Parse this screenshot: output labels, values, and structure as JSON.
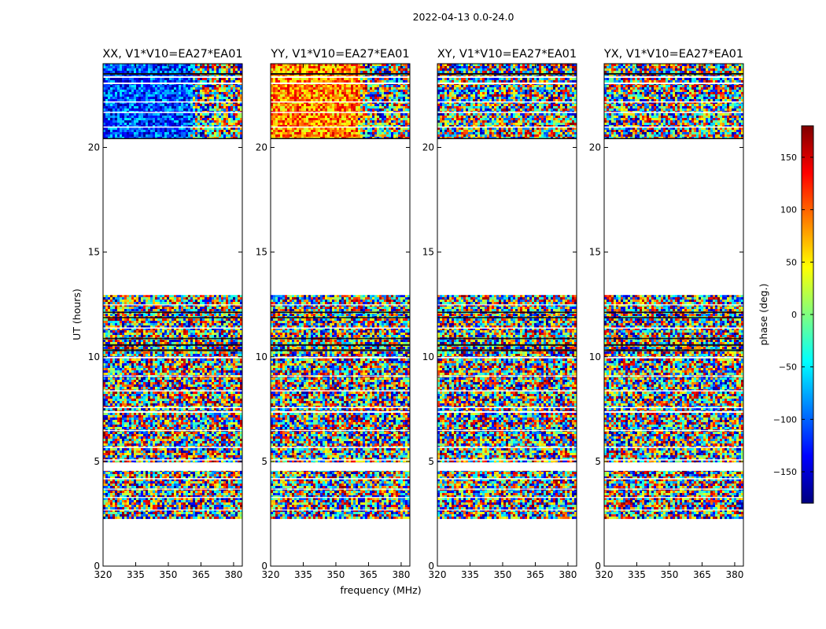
{
  "figure": {
    "suptitle": "2022-04-13 0.0-24.0",
    "xlabel": "frequency (MHz)",
    "ylabel": "UT (hours)"
  },
  "colorbar": {
    "label": "phase (deg.)",
    "range": [
      -180,
      180
    ],
    "ticks": [
      -150,
      -100,
      -50,
      0,
      50,
      100,
      150
    ],
    "tick_labels": [
      "−150",
      "−100",
      "−50",
      "0",
      "50",
      "100",
      "150"
    ],
    "colormap": "jet",
    "colors": [
      "#00007f",
      "#0000ff",
      "#007fff",
      "#00ffff",
      "#7fff7f",
      "#ffff00",
      "#ff7f00",
      "#ff0000",
      "#7f0000"
    ]
  },
  "chart_data": {
    "type": "heatmap",
    "value_name": "phase (deg.)",
    "grid": false,
    "xlim": [
      320,
      384
    ],
    "ylim": [
      0,
      24
    ],
    "xticks": [
      320,
      335,
      350,
      365,
      380
    ],
    "yticks": [
      0,
      5,
      10,
      15,
      20
    ],
    "ytick_labels": [
      "0",
      "5",
      "10",
      "15",
      "20"
    ],
    "data_time_ranges": [
      [
        2.25,
        12.95
      ],
      [
        20.4,
        24.0
      ]
    ],
    "flagged_time_ranges": [
      [
        0,
        2.25
      ],
      [
        4.55,
        4.95
      ],
      [
        12.95,
        20.4
      ]
    ],
    "panels": [
      {
        "title": "XX, V1*V10=EA27*EA01",
        "coherent_phase": -110,
        "coherence_period": "after 20 UT, 320-360 MHz"
      },
      {
        "title": "YY, V1*V10=EA27*EA01",
        "coherent_phase": 90,
        "coherence_period": "after 20 UT, 320-360 MHz"
      },
      {
        "title": "XY, V1*V10=EA27*EA01",
        "coherent_phase": null,
        "coherence_period": ""
      },
      {
        "title": "YX, V1*V10=EA27*EA01",
        "coherent_phase": null,
        "coherence_period": ""
      }
    ]
  }
}
